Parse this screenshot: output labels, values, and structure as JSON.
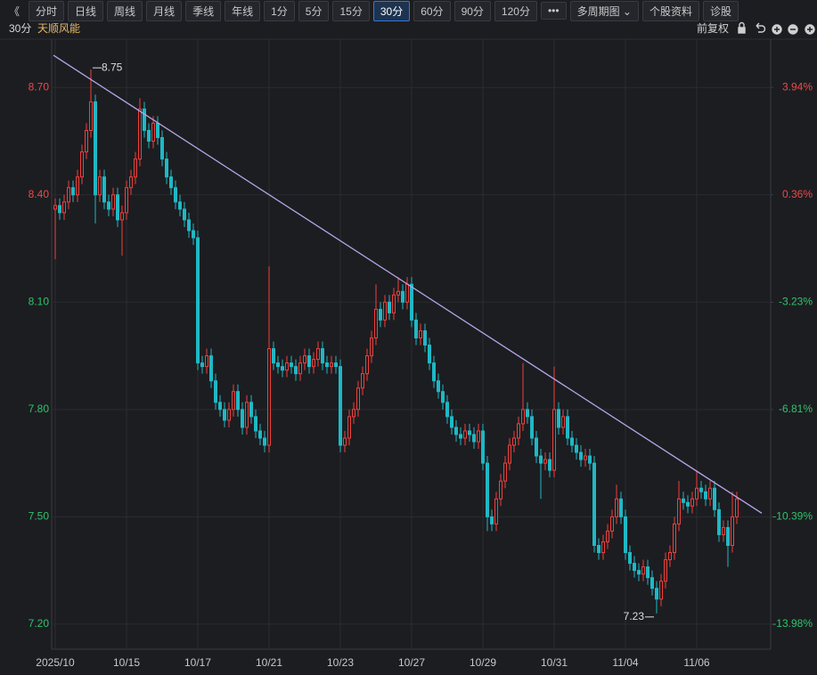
{
  "toolbar": {
    "back": "《",
    "buttons": [
      "分时",
      "日线",
      "周线",
      "月线",
      "季线",
      "年线",
      "1分",
      "5分",
      "15分",
      "30分",
      "60分",
      "90分",
      "120分",
      "•••",
      "多周期图 ⌄",
      "个股资料",
      "诊股"
    ],
    "selected": "30分"
  },
  "header": {
    "period": "30分",
    "name": "天顺风能",
    "adjust": "前复权"
  },
  "chart_data": {
    "type": "candlestick",
    "categories": [
      "2025/10",
      null,
      null,
      null,
      null,
      null,
      null,
      null,
      null,
      null,
      null,
      null,
      null,
      null,
      null,
      null,
      "10/15",
      null,
      null,
      null,
      null,
      null,
      null,
      null,
      null,
      null,
      null,
      null,
      null,
      null,
      null,
      null,
      "10/17",
      null,
      null,
      null,
      null,
      null,
      null,
      null,
      null,
      null,
      null,
      null,
      null,
      null,
      null,
      null,
      "10/21",
      null,
      null,
      null,
      null,
      null,
      null,
      null,
      null,
      null,
      null,
      null,
      null,
      null,
      null,
      null,
      "10/23",
      null,
      null,
      null,
      null,
      null,
      null,
      null,
      null,
      null,
      null,
      null,
      null,
      null,
      null,
      null,
      "10/27",
      null,
      null,
      null,
      null,
      null,
      null,
      null,
      null,
      null,
      null,
      null,
      null,
      null,
      null,
      null,
      "10/29",
      null,
      null,
      null,
      null,
      null,
      null,
      null,
      null,
      null,
      null,
      null,
      null,
      null,
      null,
      null,
      "10/31",
      null,
      null,
      null,
      null,
      null,
      null,
      null,
      null,
      null,
      null,
      null,
      null,
      null,
      null,
      null,
      "11/04",
      null,
      null,
      null,
      null,
      null,
      null,
      null,
      null,
      null,
      null,
      null,
      null,
      null,
      null,
      null,
      "11/06",
      null,
      null,
      null,
      null,
      null,
      null,
      null,
      null,
      null
    ],
    "open": [
      8.36,
      8.37,
      8.35,
      8.38,
      8.42,
      8.4,
      8.45,
      8.52,
      8.58,
      8.66,
      8.4,
      8.45,
      8.38,
      8.36,
      8.4,
      8.33,
      8.35,
      8.42,
      8.45,
      8.5,
      8.64,
      8.58,
      8.55,
      8.6,
      8.56,
      8.5,
      8.45,
      8.42,
      8.38,
      8.36,
      8.33,
      8.3,
      8.28,
      7.93,
      7.92,
      7.95,
      7.88,
      7.82,
      7.8,
      7.77,
      7.8,
      7.85,
      7.8,
      7.75,
      7.82,
      7.78,
      7.74,
      7.72,
      7.7,
      7.97,
      7.93,
      7.92,
      7.91,
      7.93,
      7.92,
      7.9,
      7.93,
      7.95,
      7.92,
      7.94,
      7.97,
      7.93,
      7.92,
      7.93,
      7.92,
      7.7,
      7.72,
      7.78,
      7.8,
      7.86,
      7.9,
      7.95,
      8.0,
      8.08,
      8.05,
      8.1,
      8.07,
      8.12,
      8.13,
      8.1,
      8.15,
      8.05,
      8.0,
      8.02,
      7.98,
      7.93,
      7.88,
      7.85,
      7.82,
      7.78,
      7.75,
      7.73,
      7.72,
      7.74,
      7.73,
      7.71,
      7.74,
      7.65,
      7.5,
      7.48,
      7.55,
      7.6,
      7.65,
      7.7,
      7.72,
      7.76,
      7.8,
      7.78,
      7.72,
      7.67,
      7.65,
      7.66,
      7.63,
      7.8,
      7.75,
      7.78,
      7.72,
      7.7,
      7.68,
      7.66,
      7.67,
      7.65,
      7.42,
      7.4,
      7.43,
      7.46,
      7.5,
      7.55,
      7.5,
      7.4,
      7.37,
      7.35,
      7.34,
      7.36,
      7.33,
      7.3,
      7.27,
      7.32,
      7.38,
      7.4,
      7.48,
      7.55,
      7.54,
      7.53,
      7.55,
      7.58,
      7.57,
      7.55,
      7.58,
      7.52,
      7.45,
      7.47,
      7.42,
      7.5
    ],
    "high": [
      8.39,
      8.39,
      8.4,
      8.44,
      8.44,
      8.47,
      8.54,
      8.6,
      8.75,
      8.68,
      8.47,
      8.47,
      8.4,
      8.42,
      8.42,
      8.37,
      8.44,
      8.47,
      8.52,
      8.67,
      8.66,
      8.6,
      8.62,
      8.62,
      8.58,
      8.52,
      8.47,
      8.44,
      8.4,
      8.38,
      8.35,
      8.32,
      8.3,
      7.95,
      7.97,
      7.97,
      7.9,
      7.84,
      7.82,
      7.82,
      7.87,
      7.87,
      7.82,
      7.84,
      7.84,
      7.8,
      7.76,
      7.74,
      8.2,
      7.99,
      7.95,
      7.94,
      7.95,
      7.95,
      7.94,
      7.95,
      7.97,
      7.97,
      7.96,
      7.99,
      7.99,
      7.95,
      7.95,
      7.95,
      7.94,
      7.74,
      7.8,
      7.82,
      7.88,
      7.92,
      7.97,
      8.02,
      8.15,
      8.1,
      8.12,
      8.12,
      8.14,
      8.17,
      8.15,
      8.17,
      8.17,
      8.07,
      8.04,
      8.04,
      8.0,
      7.95,
      7.9,
      7.87,
      7.84,
      7.8,
      7.77,
      7.75,
      7.76,
      7.76,
      7.75,
      7.76,
      7.76,
      7.67,
      7.52,
      7.57,
      7.62,
      7.67,
      7.72,
      7.74,
      7.78,
      7.93,
      7.82,
      7.8,
      7.74,
      7.69,
      7.68,
      7.68,
      7.92,
      7.82,
      7.8,
      7.8,
      7.74,
      7.72,
      7.7,
      7.69,
      7.69,
      7.67,
      7.44,
      7.45,
      7.48,
      7.52,
      7.59,
      7.57,
      7.52,
      7.42,
      7.39,
      7.37,
      7.38,
      7.38,
      7.35,
      7.32,
      7.34,
      7.4,
      7.42,
      7.5,
      7.6,
      7.57,
      7.56,
      7.57,
      7.63,
      7.6,
      7.59,
      7.6,
      7.6,
      7.54,
      7.49,
      7.49,
      7.57,
      7.57
    ],
    "low": [
      8.22,
      8.33,
      8.33,
      8.36,
      8.38,
      8.38,
      8.43,
      8.5,
      8.56,
      8.32,
      8.38,
      8.36,
      8.34,
      8.34,
      8.31,
      8.23,
      8.33,
      8.4,
      8.43,
      8.48,
      8.56,
      8.53,
      8.53,
      8.54,
      8.48,
      8.43,
      8.4,
      8.36,
      8.34,
      8.31,
      8.28,
      8.26,
      7.91,
      7.9,
      7.9,
      7.86,
      7.8,
      7.78,
      7.75,
      7.75,
      7.78,
      7.78,
      7.73,
      7.73,
      7.76,
      7.72,
      7.7,
      7.68,
      7.68,
      7.91,
      7.9,
      7.89,
      7.89,
      7.9,
      7.88,
      7.88,
      7.91,
      7.9,
      7.9,
      7.92,
      7.91,
      7.9,
      7.9,
      7.9,
      7.68,
      7.68,
      7.7,
      7.76,
      7.78,
      7.84,
      7.88,
      7.93,
      7.98,
      8.03,
      8.03,
      8.05,
      8.05,
      8.1,
      8.08,
      8.08,
      8.03,
      7.98,
      7.98,
      7.96,
      7.91,
      7.86,
      7.83,
      7.8,
      7.76,
      7.73,
      7.71,
      7.7,
      7.7,
      7.71,
      7.69,
      7.69,
      7.63,
      7.46,
      7.46,
      7.46,
      7.53,
      7.58,
      7.63,
      7.68,
      7.7,
      7.74,
      7.76,
      7.7,
      7.65,
      7.55,
      7.63,
      7.61,
      7.61,
      7.73,
      7.73,
      7.7,
      7.68,
      7.66,
      7.64,
      7.64,
      7.63,
      7.4,
      7.38,
      7.38,
      7.41,
      7.44,
      7.48,
      7.48,
      7.38,
      7.35,
      7.33,
      7.32,
      7.32,
      7.31,
      7.28,
      7.23,
      7.25,
      7.3,
      7.36,
      7.38,
      7.46,
      7.52,
      7.51,
      7.51,
      7.53,
      7.55,
      7.53,
      7.53,
      7.5,
      7.43,
      7.43,
      7.36,
      7.4,
      7.48
    ],
    "close": [
      8.37,
      8.35,
      8.38,
      8.42,
      8.4,
      8.45,
      8.52,
      8.58,
      8.66,
      8.4,
      8.45,
      8.38,
      8.36,
      8.4,
      8.33,
      8.35,
      8.42,
      8.45,
      8.5,
      8.64,
      8.58,
      8.55,
      8.6,
      8.56,
      8.5,
      8.45,
      8.42,
      8.38,
      8.36,
      8.33,
      8.3,
      8.28,
      7.93,
      7.92,
      7.95,
      7.88,
      7.82,
      7.8,
      7.77,
      7.8,
      7.85,
      7.8,
      7.75,
      7.82,
      7.78,
      7.74,
      7.72,
      7.7,
      7.97,
      7.93,
      7.92,
      7.91,
      7.93,
      7.92,
      7.9,
      7.93,
      7.95,
      7.92,
      7.94,
      7.97,
      7.93,
      7.92,
      7.93,
      7.92,
      7.7,
      7.72,
      7.78,
      7.8,
      7.86,
      7.9,
      7.95,
      8.0,
      8.08,
      8.05,
      8.1,
      8.07,
      8.12,
      8.13,
      8.1,
      8.15,
      8.05,
      8.0,
      8.02,
      7.98,
      7.93,
      7.88,
      7.85,
      7.82,
      7.78,
      7.75,
      7.73,
      7.72,
      7.74,
      7.73,
      7.71,
      7.74,
      7.65,
      7.5,
      7.48,
      7.55,
      7.6,
      7.65,
      7.7,
      7.72,
      7.76,
      7.8,
      7.78,
      7.72,
      7.67,
      7.65,
      7.66,
      7.63,
      7.8,
      7.75,
      7.78,
      7.72,
      7.7,
      7.68,
      7.66,
      7.67,
      7.65,
      7.42,
      7.4,
      7.43,
      7.46,
      7.5,
      7.55,
      7.5,
      7.4,
      7.37,
      7.35,
      7.34,
      7.36,
      7.33,
      7.3,
      7.27,
      7.32,
      7.38,
      7.4,
      7.48,
      7.55,
      7.54,
      7.53,
      7.55,
      7.58,
      7.57,
      7.55,
      7.58,
      7.52,
      7.45,
      7.47,
      7.42,
      7.5,
      7.55
    ],
    "up_color": "#f0403c",
    "down_color": "#1fb8c4",
    "ylim": [
      7.13,
      8.85
    ],
    "yticks": [
      {
        "value": 8.7,
        "label": "8.70"
      },
      {
        "value": 8.4,
        "label": "8.40"
      },
      {
        "value": 8.1,
        "label": "8.10"
      },
      {
        "value": 7.8,
        "label": "7.80"
      },
      {
        "value": 7.5,
        "label": "7.50"
      },
      {
        "value": 7.2,
        "label": "7.20"
      }
    ],
    "y2lim": [
      -14.81,
      5.73
    ],
    "y2ticks": [
      {
        "value": 3.94,
        "label": "3.94%"
      },
      {
        "value": 0.36,
        "label": "0.36%"
      },
      {
        "value": -3.23,
        "label": "-3.23%"
      },
      {
        "value": -6.81,
        "label": "-6.81%"
      },
      {
        "value": -10.39,
        "label": "-10.39%"
      },
      {
        "value": -13.98,
        "label": "-13.98%"
      }
    ],
    "grid": true,
    "annotations": [
      {
        "value": 8.75,
        "label": "8.75"
      },
      {
        "value": 7.23,
        "label": "7.23"
      }
    ],
    "trend_line": {
      "values": [
        8.79,
        7.51
      ],
      "color": "#b7a6ea"
    }
  }
}
